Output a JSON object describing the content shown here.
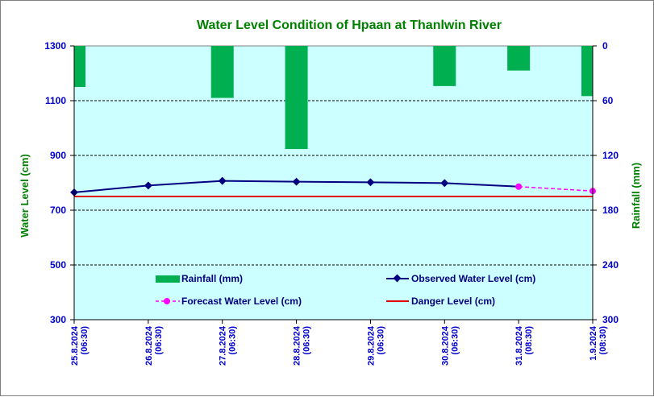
{
  "chart_data": {
    "type": "bar+line",
    "title": "Water Level Condition of Hpaan at Thanlwin River",
    "ylabel": "Water Level (cm)",
    "y2label": "Rainfall (mm)",
    "ylim": [
      300,
      1300
    ],
    "y2lim": [
      300,
      0
    ],
    "yticks": [
      "1300",
      "1100",
      "900",
      "700",
      "500",
      "300"
    ],
    "y2ticks": [
      "0",
      "60",
      "120",
      "180",
      "240",
      "300"
    ],
    "categories": [
      [
        "25.8.2024",
        "(06:30)"
      ],
      [
        "26.8.2024",
        "(06:30)"
      ],
      [
        "27.8.2024",
        "(06:30)"
      ],
      [
        "28.8.2024",
        "(06:30)"
      ],
      [
        "29.8.2024",
        "(06:30)"
      ],
      [
        "30.8.2024",
        "(06:30)"
      ],
      [
        "31.8.2024",
        "(08:30)"
      ],
      [
        "1.9.2024",
        "(08:30)"
      ]
    ],
    "grid": true,
    "legend_position": "bottom-inside",
    "colors": {
      "plot_background": "#ccffff",
      "rainfall": "#00b050",
      "observed": "#000080",
      "forecast": "#ff00ff",
      "danger": "#e00000",
      "title": "#008000",
      "axis_label": "#008000",
      "tick_label": "#0000cc"
    },
    "series": [
      {
        "name": "Rainfall (mm)",
        "type": "bar",
        "axis": "right",
        "values": [
          45,
          null,
          57,
          113,
          null,
          44,
          27,
          55
        ]
      },
      {
        "name": "Observed Water Level (cm)",
        "type": "line",
        "axis": "left",
        "values": [
          765,
          790,
          807,
          804,
          802,
          799,
          786,
          null
        ]
      },
      {
        "name": "Forecast Water Level (cm)",
        "type": "line-dashed",
        "axis": "left",
        "values": [
          null,
          null,
          null,
          null,
          null,
          null,
          786,
          770
        ]
      },
      {
        "name": "Danger Level (cm)",
        "type": "line",
        "axis": "left",
        "values": [
          750,
          750,
          750,
          750,
          750,
          750,
          750,
          750
        ]
      }
    ]
  }
}
